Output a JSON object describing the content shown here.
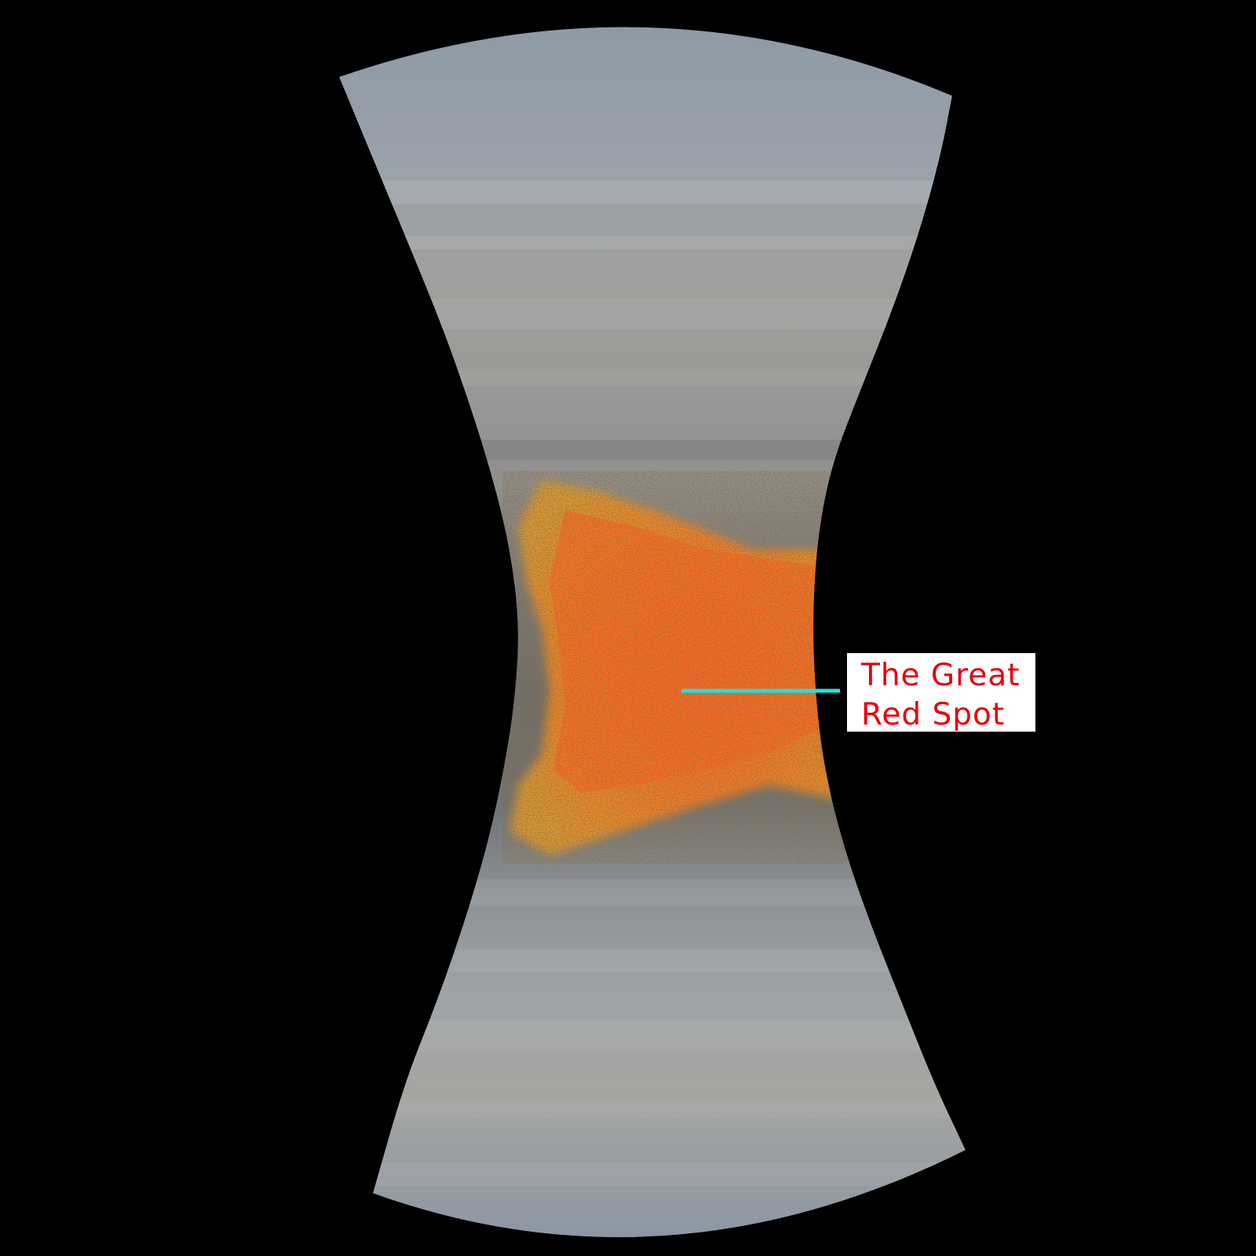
{
  "annotation": {
    "line1": "The Great",
    "line2": "Red Spot",
    "text_color": "#e8000a",
    "box_color": "#ffffff",
    "pointer_color": "#22e0dc"
  },
  "colors": {
    "background": "#000000",
    "planet_light": "#9aa3ad",
    "planet_mid": "#8c9198",
    "planet_dark": "#6f7276",
    "spot_core": "#ff6a1e",
    "spot_edge": "#f08a22",
    "spot_outer": "#d9962e"
  }
}
